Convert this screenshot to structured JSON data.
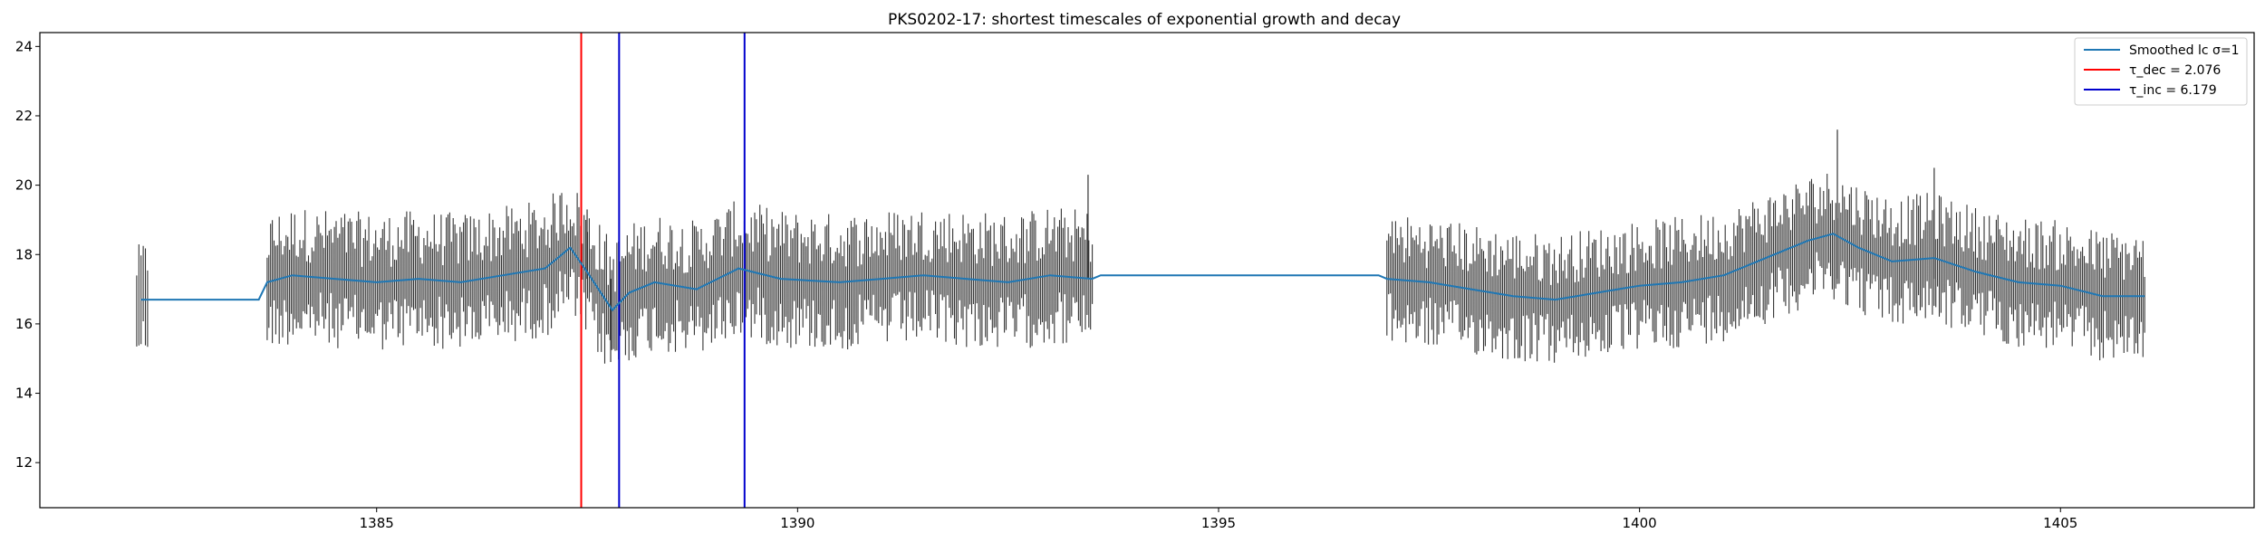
{
  "chart_data": {
    "type": "line",
    "title": "PKS0202-17: shortest timescales of exponential growth and decay",
    "xlabel": "",
    "ylabel": "",
    "xlim": [
      1381.0,
      1407.3
    ],
    "ylim": [
      10.7,
      24.4
    ],
    "x_ticks": [
      1385,
      1390,
      1395,
      1400,
      1405
    ],
    "y_ticks": [
      12,
      14,
      16,
      18,
      20,
      22,
      24
    ],
    "grid": false,
    "legend_position": "top-right",
    "legend": [
      {
        "label": "Smoothed lc σ=1",
        "color": "#1f77b4"
      },
      {
        "label": "τ_dec = 2.076",
        "color": "#ff0000"
      },
      {
        "label": "τ_inc = 6.179",
        "color": "#0000cd"
      }
    ],
    "series": [
      {
        "name": "Smoothed lc σ=1",
        "color": "#1f77b4",
        "points": [
          [
            1382.2,
            16.7
          ],
          [
            1383.6,
            16.7
          ],
          [
            1383.7,
            17.2
          ],
          [
            1384.0,
            17.4
          ],
          [
            1384.5,
            17.3
          ],
          [
            1385.0,
            17.2
          ],
          [
            1385.5,
            17.3
          ],
          [
            1386.0,
            17.2
          ],
          [
            1386.5,
            17.4
          ],
          [
            1387.0,
            17.6
          ],
          [
            1387.3,
            18.2
          ],
          [
            1387.5,
            17.5
          ],
          [
            1387.8,
            16.4
          ],
          [
            1388.0,
            16.9
          ],
          [
            1388.3,
            17.2
          ],
          [
            1388.8,
            17.0
          ],
          [
            1389.3,
            17.6
          ],
          [
            1389.8,
            17.3
          ],
          [
            1390.5,
            17.2
          ],
          [
            1391.0,
            17.3
          ],
          [
            1391.5,
            17.4
          ],
          [
            1392.0,
            17.3
          ],
          [
            1392.5,
            17.2
          ],
          [
            1393.0,
            17.4
          ],
          [
            1393.5,
            17.3
          ],
          [
            1393.6,
            17.4
          ],
          [
            1396.9,
            17.4
          ],
          [
            1397.0,
            17.3
          ],
          [
            1397.5,
            17.2
          ],
          [
            1398.0,
            17.0
          ],
          [
            1398.5,
            16.8
          ],
          [
            1399.0,
            16.7
          ],
          [
            1399.5,
            16.9
          ],
          [
            1400.0,
            17.1
          ],
          [
            1400.5,
            17.2
          ],
          [
            1401.0,
            17.4
          ],
          [
            1401.5,
            17.9
          ],
          [
            1402.0,
            18.4
          ],
          [
            1402.3,
            18.6
          ],
          [
            1402.6,
            18.2
          ],
          [
            1403.0,
            17.8
          ],
          [
            1403.5,
            17.9
          ],
          [
            1404.0,
            17.5
          ],
          [
            1404.5,
            17.2
          ],
          [
            1405.0,
            17.1
          ],
          [
            1405.5,
            16.8
          ],
          [
            1406.0,
            16.8
          ]
        ]
      }
    ],
    "light_curve": {
      "color": "#333333",
      "segments": [
        {
          "x_start": 1382.15,
          "x_end": 1382.28,
          "n": 6,
          "center": 16.6,
          "spread": 1.3
        },
        {
          "x_start": 1383.7,
          "x_end": 1393.5,
          "n": 480,
          "center": 17.2,
          "spread": 1.6
        },
        {
          "x_start": 1397.0,
          "x_end": 1406.0,
          "n": 440,
          "center": 17.1,
          "spread": 1.5
        }
      ],
      "peaks": [
        {
          "x": 1402.35,
          "y": 21.6
        },
        {
          "x": 1393.45,
          "y": 20.3
        },
        {
          "x": 1387.5,
          "y": 19.3
        },
        {
          "x": 1403.5,
          "y": 20.5
        },
        {
          "x": 1387.78,
          "y": 14.9
        }
      ]
    },
    "vertical_lines": [
      {
        "x": 1387.43,
        "color": "#ff0000",
        "label": "τ_dec = 2.076"
      },
      {
        "x": 1387.88,
        "color": "#0000cd",
        "label": "τ_inc = 6.179"
      },
      {
        "x": 1389.37,
        "color": "#0000cd",
        "label": "τ_inc = 6.179"
      }
    ]
  }
}
